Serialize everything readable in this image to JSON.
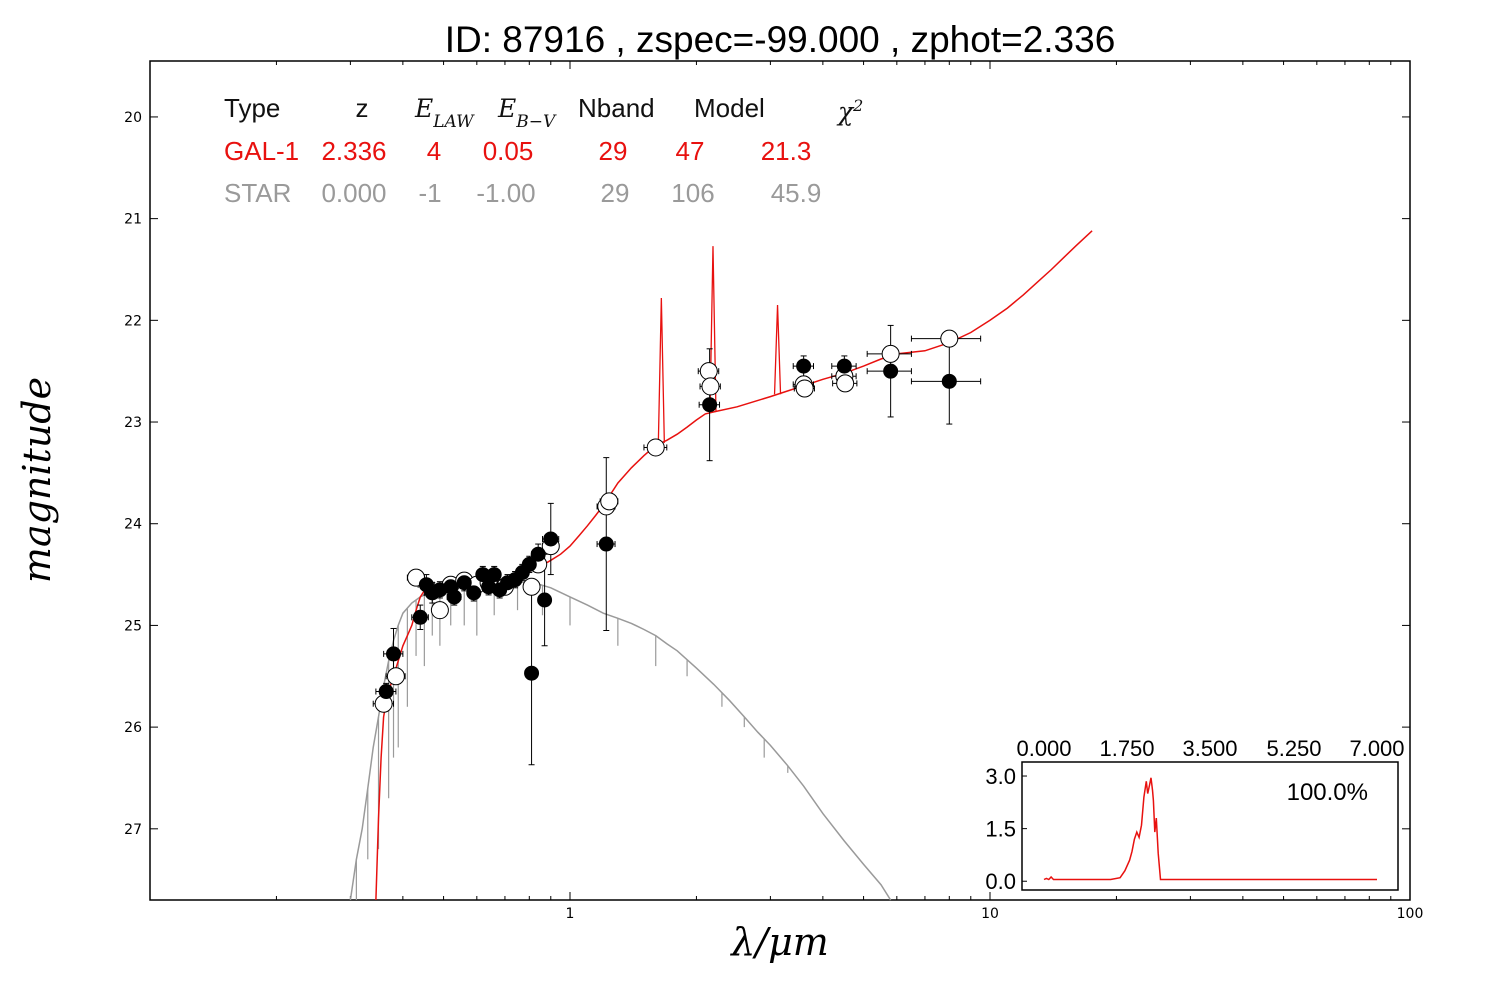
{
  "chart_data": {
    "type": "scatter",
    "title": "ID:  87916 , zspec=-99.000 , zphot=2.336",
    "xlabel": "λ/μm",
    "ylabel": "magnitude",
    "xscale": "log",
    "xlim": [
      0.1,
      100
    ],
    "ylim": [
      27.7,
      19.45
    ],
    "y_inverted": true,
    "x_ticks": [
      1,
      10,
      100
    ],
    "x_tick_labels": [
      "1",
      "10",
      "100"
    ],
    "y_ticks": [
      20,
      21,
      22,
      23,
      24,
      25,
      26,
      27
    ],
    "y_tick_labels": [
      "20",
      "21",
      "22",
      "23",
      "24",
      "25",
      "26",
      "27"
    ],
    "grid": false,
    "fit_table": {
      "headers": [
        "Type",
        "z",
        "E_LAW",
        "E_B−V",
        "Nband",
        "Model",
        "χ²"
      ],
      "rows": [
        {
          "values": [
            "GAL-1",
            "2.336",
            "4",
            "0.05",
            "29",
            "47",
            "21.3"
          ],
          "color": "#e8110f"
        },
        {
          "values": [
            "STAR",
            "0.000",
            "-1",
            "-1.00",
            "29",
            "106",
            "45.9"
          ],
          "color": "#9a9a9a"
        }
      ]
    },
    "observed": [
      {
        "x": 0.365,
        "y": 25.65,
        "yerr": 0.08,
        "xerr": 0.02
      },
      {
        "x": 0.38,
        "y": 25.28,
        "yerr": 0.25,
        "xerr": 0.02
      },
      {
        "x": 0.44,
        "y": 24.92,
        "yerr": 0.12,
        "xerr": 0.02
      },
      {
        "x": 0.455,
        "y": 24.6,
        "yerr": 0.1,
        "xerr": 0.02
      },
      {
        "x": 0.47,
        "y": 24.68,
        "yerr": 0.1,
        "xerr": 0.02
      },
      {
        "x": 0.49,
        "y": 24.65,
        "yerr": 0.08,
        "xerr": 0.02
      },
      {
        "x": 0.52,
        "y": 24.62,
        "yerr": 0.08,
        "xerr": 0.02
      },
      {
        "x": 0.53,
        "y": 24.72,
        "yerr": 0.08,
        "xerr": 0.02
      },
      {
        "x": 0.56,
        "y": 24.58,
        "yerr": 0.08,
        "xerr": 0.02
      },
      {
        "x": 0.59,
        "y": 24.68,
        "yerr": 0.08,
        "xerr": 0.02
      },
      {
        "x": 0.62,
        "y": 24.5,
        "yerr": 0.08,
        "xerr": 0.02
      },
      {
        "x": 0.64,
        "y": 24.62,
        "yerr": 0.08,
        "xerr": 0.02
      },
      {
        "x": 0.66,
        "y": 24.5,
        "yerr": 0.08,
        "xerr": 0.02
      },
      {
        "x": 0.68,
        "y": 24.65,
        "yerr": 0.08,
        "xerr": 0.02
      },
      {
        "x": 0.71,
        "y": 24.58,
        "yerr": 0.08,
        "xerr": 0.02
      },
      {
        "x": 0.74,
        "y": 24.55,
        "yerr": 0.08,
        "xerr": 0.02
      },
      {
        "x": 0.77,
        "y": 24.48,
        "yerr": 0.08,
        "xerr": 0.02
      },
      {
        "x": 0.8,
        "y": 24.4,
        "yerr": 0.08,
        "xerr": 0.02
      },
      {
        "x": 0.81,
        "y": 25.47,
        "yerr": 0.9,
        "xerr": 0.02
      },
      {
        "x": 0.84,
        "y": 24.3,
        "yerr": 0.1,
        "xerr": 0.03
      },
      {
        "x": 0.87,
        "y": 24.75,
        "yerr": 0.45,
        "xerr": 0.03
      },
      {
        "x": 0.9,
        "y": 24.15,
        "yerr": 0.35,
        "xerr": 0.04
      },
      {
        "x": 1.22,
        "y": 24.2,
        "yerr": 0.85,
        "xerr": 0.06
      },
      {
        "x": 2.15,
        "y": 22.83,
        "yerr": 0.55,
        "xerr": 0.12
      },
      {
        "x": 3.6,
        "y": 22.45,
        "yerr": 0.1,
        "xerr": 0.2
      },
      {
        "x": 4.5,
        "y": 22.45,
        "yerr": 0.1,
        "xerr": 0.3
      },
      {
        "x": 5.8,
        "y": 22.5,
        "yerr": 0.45,
        "xerr": 0.7
      },
      {
        "x": 8.0,
        "y": 22.6,
        "yerr": 0.42,
        "xerr": 1.5
      }
    ],
    "model_fluxes": [
      {
        "x": 0.36,
        "y": 25.77,
        "xerr": 0.02
      },
      {
        "x": 0.385,
        "y": 25.5,
        "xerr": 0.02
      },
      {
        "x": 0.43,
        "y": 24.53,
        "xerr": 0.02
      },
      {
        "x": 0.49,
        "y": 24.85,
        "xerr": 0.02
      },
      {
        "x": 0.52,
        "y": 24.6,
        "xerr": 0.02
      },
      {
        "x": 0.56,
        "y": 24.56,
        "xerr": 0.02
      },
      {
        "x": 0.6,
        "y": 24.6,
        "xerr": 0.02
      },
      {
        "x": 0.64,
        "y": 24.58,
        "xerr": 0.02
      },
      {
        "x": 0.7,
        "y": 24.62,
        "xerr": 0.02
      },
      {
        "x": 0.81,
        "y": 24.62,
        "xerr": 0.03
      },
      {
        "x": 0.84,
        "y": 24.4,
        "xerr": 0.03
      },
      {
        "x": 0.9,
        "y": 24.22,
        "xerr": 0.04
      },
      {
        "x": 1.22,
        "y": 23.83,
        "xerr": 0.06
      },
      {
        "x": 1.24,
        "y": 23.78,
        "xerr": 0.06
      },
      {
        "x": 1.6,
        "y": 23.25,
        "xerr": 0.1
      },
      {
        "x": 2.14,
        "y": 22.5,
        "xerr": 0.12
      },
      {
        "x": 2.16,
        "y": 22.65,
        "xerr": 0.12
      },
      {
        "x": 3.6,
        "y": 22.63,
        "xerr": 0.2
      },
      {
        "x": 3.62,
        "y": 22.67,
        "xerr": 0.2
      },
      {
        "x": 4.5,
        "y": 22.55,
        "xerr": 0.3
      },
      {
        "x": 4.52,
        "y": 22.62,
        "xerr": 0.3
      },
      {
        "x": 5.8,
        "y": 22.33,
        "xerr": 0.7
      },
      {
        "x": 8.0,
        "y": 22.18,
        "xerr": 1.5
      }
    ],
    "galaxy_model": {
      "name": "GAL-1",
      "color": "#e8110f",
      "points": [
        [
          0.345,
          27.7
        ],
        [
          0.35,
          26.9
        ],
        [
          0.355,
          26.3
        ],
        [
          0.36,
          25.9
        ],
        [
          0.365,
          25.75
        ],
        [
          0.37,
          25.65
        ],
        [
          0.38,
          25.5
        ],
        [
          0.39,
          25.35
        ],
        [
          0.4,
          25.2
        ],
        [
          0.41,
          25.1
        ],
        [
          0.42,
          25.0
        ],
        [
          0.43,
          24.85
        ],
        [
          0.44,
          24.72
        ],
        [
          0.45,
          24.66
        ],
        [
          0.47,
          24.65
        ],
        [
          0.5,
          24.64
        ],
        [
          0.55,
          24.62
        ],
        [
          0.6,
          24.6
        ],
        [
          0.65,
          24.58
        ],
        [
          0.7,
          24.56
        ],
        [
          0.75,
          24.52
        ],
        [
          0.8,
          24.47
        ],
        [
          0.85,
          24.42
        ],
        [
          0.9,
          24.36
        ],
        [
          0.95,
          24.3
        ],
        [
          1.0,
          24.22
        ],
        [
          1.05,
          24.12
        ],
        [
          1.1,
          24.02
        ],
        [
          1.15,
          23.92
        ],
        [
          1.2,
          23.82
        ],
        [
          1.3,
          23.6
        ],
        [
          1.4,
          23.45
        ],
        [
          1.5,
          23.33
        ],
        [
          1.6,
          23.23
        ],
        [
          1.7,
          23.18
        ],
        [
          1.8,
          23.12
        ],
        [
          1.9,
          23.05
        ],
        [
          2.0,
          22.98
        ],
        [
          2.1,
          22.92
        ],
        [
          2.2,
          22.9
        ],
        [
          2.5,
          22.85
        ],
        [
          3.0,
          22.75
        ],
        [
          3.5,
          22.66
        ],
        [
          4.0,
          22.58
        ],
        [
          4.5,
          22.52
        ],
        [
          5.0,
          22.45
        ],
        [
          5.5,
          22.38
        ],
        [
          6.0,
          22.33
        ],
        [
          7.0,
          22.3
        ],
        [
          8.0,
          22.22
        ],
        [
          9.0,
          22.12
        ],
        [
          10.0,
          22.0
        ],
        [
          11.0,
          21.88
        ],
        [
          12.0,
          21.75
        ],
        [
          13.0,
          21.62
        ],
        [
          14.0,
          21.5
        ],
        [
          15.0,
          21.38
        ],
        [
          16.0,
          21.27
        ],
        [
          17.5,
          21.12
        ]
      ],
      "emission_lines": [
        {
          "x": 1.65,
          "y": 21.78
        },
        {
          "x": 2.19,
          "y": 21.27
        },
        {
          "x": 3.12,
          "y": 21.85
        }
      ]
    },
    "star_model": {
      "name": "STAR",
      "color": "#9a9a9a",
      "points": [
        [
          0.3,
          27.7
        ],
        [
          0.31,
          27.3
        ],
        [
          0.32,
          27.0
        ],
        [
          0.33,
          26.6
        ],
        [
          0.34,
          26.2
        ],
        [
          0.35,
          25.9
        ],
        [
          0.36,
          25.6
        ],
        [
          0.37,
          25.35
        ],
        [
          0.38,
          25.15
        ],
        [
          0.39,
          25.0
        ],
        [
          0.4,
          24.88
        ],
        [
          0.42,
          24.78
        ],
        [
          0.44,
          24.72
        ],
        [
          0.46,
          24.68
        ],
        [
          0.5,
          24.66
        ],
        [
          0.55,
          24.62
        ],
        [
          0.6,
          24.6
        ],
        [
          0.65,
          24.58
        ],
        [
          0.7,
          24.57
        ],
        [
          0.75,
          24.57
        ],
        [
          0.8,
          24.58
        ],
        [
          0.85,
          24.6
        ],
        [
          0.9,
          24.63
        ],
        [
          1.0,
          24.72
        ],
        [
          1.1,
          24.8
        ],
        [
          1.2,
          24.88
        ],
        [
          1.3,
          24.93
        ],
        [
          1.4,
          24.98
        ],
        [
          1.5,
          25.04
        ],
        [
          1.6,
          25.1
        ],
        [
          1.7,
          25.18
        ],
        [
          1.8,
          25.25
        ],
        [
          2.0,
          25.42
        ],
        [
          2.2,
          25.58
        ],
        [
          2.4,
          25.74
        ],
        [
          2.6,
          25.9
        ],
        [
          2.8,
          26.05
        ],
        [
          3.0,
          26.18
        ],
        [
          3.3,
          26.38
        ],
        [
          3.6,
          26.58
        ],
        [
          4.0,
          26.85
        ],
        [
          4.5,
          27.12
        ],
        [
          5.0,
          27.35
        ],
        [
          5.5,
          27.55
        ],
        [
          5.8,
          27.7
        ]
      ],
      "absorption_lines": [
        {
          "x": 0.31,
          "y": 27.7
        },
        {
          "x": 0.33,
          "y": 27.3
        },
        {
          "x": 0.35,
          "y": 27.2
        },
        {
          "x": 0.37,
          "y": 26.7
        },
        {
          "x": 0.38,
          "y": 26.3
        },
        {
          "x": 0.39,
          "y": 26.2
        },
        {
          "x": 0.41,
          "y": 25.8
        },
        {
          "x": 0.43,
          "y": 25.3
        },
        {
          "x": 0.45,
          "y": 25.4
        },
        {
          "x": 0.47,
          "y": 25.1
        },
        {
          "x": 0.49,
          "y": 25.2
        },
        {
          "x": 0.52,
          "y": 25.0
        },
        {
          "x": 0.56,
          "y": 25.0
        },
        {
          "x": 0.6,
          "y": 25.1
        },
        {
          "x": 0.66,
          "y": 24.9
        },
        {
          "x": 0.75,
          "y": 24.85
        },
        {
          "x": 0.86,
          "y": 24.9
        },
        {
          "x": 1.0,
          "y": 25.0
        },
        {
          "x": 1.3,
          "y": 25.2
        },
        {
          "x": 1.6,
          "y": 25.4
        },
        {
          "x": 1.9,
          "y": 25.5
        },
        {
          "x": 2.3,
          "y": 25.8
        },
        {
          "x": 2.6,
          "y": 26.0
        },
        {
          "x": 2.9,
          "y": 26.3
        },
        {
          "x": 3.3,
          "y": 26.45
        }
      ]
    },
    "inset": {
      "xlim": [
        0,
        7
      ],
      "ylim": [
        -0.25,
        3.4
      ],
      "x_ticks": [
        0,
        1.75,
        3.5,
        5.25,
        7
      ],
      "x_tick_labels": [
        "0.000",
        "1.750",
        "3.500",
        "5.250",
        "7.000"
      ],
      "y_ticks": [
        0,
        1.5,
        3
      ],
      "y_tick_labels": [
        "0.0",
        "1.5",
        "3.0"
      ],
      "annotation": "100.0%",
      "color": "#e8110f",
      "points": [
        [
          0.0,
          0.05
        ],
        [
          0.05,
          0.08
        ],
        [
          0.1,
          0.05
        ],
        [
          0.15,
          0.12
        ],
        [
          0.2,
          0.05
        ],
        [
          0.4,
          0.05
        ],
        [
          1.4,
          0.05
        ],
        [
          1.6,
          0.1
        ],
        [
          1.7,
          0.3
        ],
        [
          1.8,
          0.6
        ],
        [
          1.85,
          0.85
        ],
        [
          1.9,
          1.2
        ],
        [
          1.95,
          1.4
        ],
        [
          2.0,
          1.25
        ],
        [
          2.05,
          1.6
        ],
        [
          2.1,
          2.4
        ],
        [
          2.15,
          2.85
        ],
        [
          2.18,
          2.5
        ],
        [
          2.22,
          2.75
        ],
        [
          2.25,
          2.95
        ],
        [
          2.28,
          2.6
        ],
        [
          2.3,
          2.3
        ],
        [
          2.33,
          1.4
        ],
        [
          2.36,
          1.8
        ],
        [
          2.4,
          0.8
        ],
        [
          2.45,
          0.05
        ],
        [
          2.6,
          0.05
        ],
        [
          7.0,
          0.05
        ]
      ]
    }
  }
}
